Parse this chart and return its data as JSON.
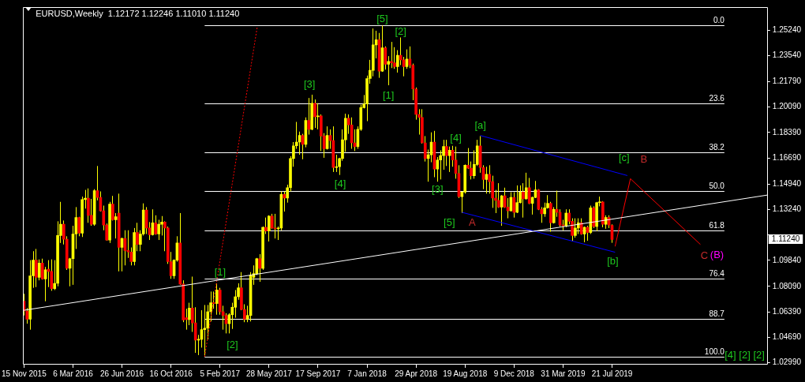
{
  "chart_data": {
    "type": "candlestick",
    "title": "EURUSD,Weekly  1.12172 1.12246 1.11010 1.11240",
    "color": "#ffff00",
    "x": [
      "2015-11-15",
      "2015-11-22",
      "2015-11-29",
      "2015-12-06",
      "2015-12-13",
      "2015-12-20",
      "2015-12-27",
      "2016-01-03",
      "2016-01-10",
      "2016-01-17",
      "2016-01-24",
      "2016-01-31",
      "2016-02-07",
      "2016-02-14",
      "2016-02-21",
      "2016-02-28",
      "2016-03-06",
      "2016-03-13",
      "2016-03-20",
      "2016-03-27",
      "2016-04-03",
      "2016-04-10",
      "2016-04-17",
      "2016-04-24",
      "2016-05-01",
      "2016-05-08",
      "2016-05-15",
      "2016-05-22",
      "2016-05-29",
      "2016-06-05",
      "2016-06-12",
      "2016-06-19",
      "2016-06-26",
      "2016-07-03",
      "2016-07-10",
      "2016-07-17",
      "2016-07-24",
      "2016-07-31",
      "2016-08-07",
      "2016-08-14",
      "2016-08-21",
      "2016-08-28",
      "2016-09-04",
      "2016-09-11",
      "2016-09-18",
      "2016-09-25",
      "2016-10-02",
      "2016-10-09",
      "2016-10-16",
      "2016-10-23",
      "2016-10-30",
      "2016-11-06",
      "2016-11-13",
      "2016-11-20",
      "2016-11-27",
      "2016-12-04",
      "2016-12-11",
      "2016-12-18",
      "2016-12-25",
      "2017-01-01",
      "2017-01-08",
      "2017-01-15",
      "2017-01-22",
      "2017-01-29",
      "2017-02-05",
      "2017-02-12",
      "2017-02-19",
      "2017-02-26",
      "2017-03-05",
      "2017-03-12",
      "2017-03-19",
      "2017-03-26",
      "2017-04-02",
      "2017-04-09",
      "2017-04-16",
      "2017-04-23",
      "2017-04-30",
      "2017-05-07",
      "2017-05-14",
      "2017-05-21",
      "2017-05-28",
      "2017-06-04",
      "2017-06-11",
      "2017-06-18",
      "2017-06-25",
      "2017-07-02",
      "2017-07-09",
      "2017-07-16",
      "2017-07-23",
      "2017-07-30",
      "2017-08-06",
      "2017-08-13",
      "2017-08-20",
      "2017-08-27",
      "2017-09-03",
      "2017-09-10",
      "2017-09-17",
      "2017-09-24",
      "2017-10-01",
      "2017-10-08",
      "2017-10-15",
      "2017-10-22",
      "2017-10-29",
      "2017-11-05",
      "2017-11-12",
      "2017-11-19",
      "2017-11-26",
      "2017-12-03",
      "2017-12-10",
      "2017-12-17",
      "2017-12-24",
      "2017-12-31",
      "2018-01-07",
      "2018-01-14",
      "2018-01-21",
      "2018-01-28",
      "2018-02-04",
      "2018-02-11",
      "2018-02-18",
      "2018-02-25",
      "2018-03-04",
      "2018-03-11",
      "2018-03-18",
      "2018-03-25",
      "2018-04-01",
      "2018-04-08",
      "2018-04-15",
      "2018-04-22",
      "2018-04-29",
      "2018-05-06",
      "2018-05-13",
      "2018-05-20",
      "2018-05-27",
      "2018-06-03",
      "2018-06-10",
      "2018-06-17",
      "2018-06-24",
      "2018-07-01",
      "2018-07-08",
      "2018-07-15",
      "2018-07-22",
      "2018-07-29",
      "2018-08-05",
      "2018-08-12",
      "2018-08-19",
      "2018-08-26",
      "2018-09-02",
      "2018-09-09",
      "2018-09-16",
      "2018-09-23",
      "2018-09-30",
      "2018-10-07",
      "2018-10-14",
      "2018-10-21",
      "2018-10-28",
      "2018-11-04",
      "2018-11-11",
      "2018-11-18",
      "2018-11-25",
      "2018-12-02",
      "2018-12-09",
      "2018-12-16",
      "2018-12-23",
      "2018-12-30",
      "2019-01-06",
      "2019-01-13",
      "2019-01-20",
      "2019-01-27",
      "2019-02-03",
      "2019-02-10",
      "2019-02-17",
      "2019-02-24",
      "2019-03-03",
      "2019-03-10",
      "2019-03-17",
      "2019-03-24",
      "2019-03-31",
      "2019-04-07",
      "2019-04-14",
      "2019-04-21",
      "2019-04-28",
      "2019-05-05",
      "2019-05-12",
      "2019-05-19",
      "2019-05-26",
      "2019-06-02",
      "2019-06-09",
      "2019-06-16",
      "2019-06-23",
      "2019-06-30",
      "2019-07-07",
      "2019-07-14",
      "2019-07-21"
    ],
    "ohlc": [
      [
        1.071,
        1.076,
        1.0615,
        1.0645
      ],
      [
        1.0645,
        1.0665,
        1.056,
        1.059
      ],
      [
        1.059,
        1.0985,
        1.052,
        1.088
      ],
      [
        1.088,
        1.1045,
        1.08,
        1.0985
      ],
      [
        1.0985,
        1.106,
        1.0805,
        1.087
      ],
      [
        1.087,
        1.099,
        1.085,
        1.0965
      ],
      [
        1.0965,
        1.0995,
        1.0855,
        1.086
      ],
      [
        1.086,
        1.094,
        1.071,
        1.092
      ],
      [
        1.0925,
        1.0985,
        1.0805,
        1.091
      ],
      [
        1.091,
        1.099,
        1.078,
        1.0795
      ],
      [
        1.0795,
        1.0985,
        1.0785,
        1.083
      ],
      [
        1.083,
        1.1245,
        1.081,
        1.115
      ],
      [
        1.115,
        1.1375,
        1.11,
        1.1225
      ],
      [
        1.1225,
        1.125,
        1.109,
        1.1125
      ],
      [
        1.1125,
        1.1145,
        1.092,
        1.093
      ],
      [
        1.093,
        1.1,
        1.081,
        1.0995
      ],
      [
        1.0995,
        1.1215,
        1.082,
        1.116
      ],
      [
        1.116,
        1.134,
        1.106,
        1.127
      ],
      [
        1.127,
        1.1275,
        1.1145,
        1.1165
      ],
      [
        1.1165,
        1.141,
        1.114,
        1.139
      ],
      [
        1.139,
        1.1455,
        1.133,
        1.14
      ],
      [
        1.14,
        1.1465,
        1.1235,
        1.1285
      ],
      [
        1.1285,
        1.1395,
        1.1215,
        1.1225
      ],
      [
        1.1225,
        1.146,
        1.1215,
        1.145
      ],
      [
        1.145,
        1.1615,
        1.1385,
        1.1405
      ],
      [
        1.1405,
        1.1445,
        1.131,
        1.1315
      ],
      [
        1.1315,
        1.135,
        1.1185,
        1.122
      ],
      [
        1.122,
        1.123,
        1.1115,
        1.112
      ],
      [
        1.112,
        1.1375,
        1.11,
        1.136
      ],
      [
        1.136,
        1.1415,
        1.125,
        1.1255
      ],
      [
        1.1255,
        1.13,
        1.113,
        1.1275
      ],
      [
        1.13,
        1.143,
        1.091,
        1.107
      ],
      [
        1.107,
        1.1135,
        1.091,
        1.113
      ],
      [
        1.113,
        1.1185,
        1.095,
        1.105
      ],
      [
        1.105,
        1.1185,
        1.1,
        1.104
      ],
      [
        1.104,
        1.107,
        1.095,
        1.0975
      ],
      [
        1.0975,
        1.12,
        1.095,
        1.117
      ],
      [
        1.117,
        1.1235,
        1.1045,
        1.109
      ],
      [
        1.109,
        1.1185,
        1.1045,
        1.116
      ],
      [
        1.116,
        1.1365,
        1.115,
        1.132
      ],
      [
        1.132,
        1.134,
        1.116,
        1.12
      ],
      [
        1.12,
        1.124,
        1.112,
        1.1155
      ],
      [
        1.1155,
        1.1325,
        1.115,
        1.1235
      ],
      [
        1.1235,
        1.1285,
        1.1155,
        1.116
      ],
      [
        1.116,
        1.1255,
        1.112,
        1.1225
      ],
      [
        1.1225,
        1.128,
        1.115,
        1.124
      ],
      [
        1.124,
        1.1245,
        1.1045,
        1.12
      ],
      [
        1.12,
        1.121,
        1.096,
        1.0975
      ],
      [
        1.0975,
        1.104,
        1.086,
        1.088
      ],
      [
        1.088,
        1.099,
        1.086,
        1.0985
      ],
      [
        1.0985,
        1.1145,
        1.0975,
        1.11
      ],
      [
        1.11,
        1.13,
        1.082,
        1.0825
      ],
      [
        1.0825,
        1.085,
        1.057,
        1.0585
      ],
      [
        1.06,
        1.066,
        1.052,
        1.0588
      ],
      [
        1.0588,
        1.07,
        1.055,
        1.0665
      ],
      [
        1.0665,
        1.0875,
        1.0505,
        1.0565
      ],
      [
        1.0565,
        1.067,
        1.0365,
        1.045
      ],
      [
        1.045,
        1.0485,
        1.035,
        1.0455
      ],
      [
        1.0455,
        1.065,
        1.04,
        1.052
      ],
      [
        1.052,
        1.0685,
        1.034,
        1.053
      ],
      [
        1.053,
        1.0685,
        1.0455,
        1.064
      ],
      [
        1.064,
        1.0775,
        1.0575,
        1.07
      ],
      [
        1.07,
        1.0775,
        1.066,
        1.0695
      ],
      [
        1.0695,
        1.083,
        1.062,
        1.0785
      ],
      [
        1.0785,
        1.08,
        1.062,
        1.064
      ],
      [
        1.064,
        1.068,
        1.052,
        1.0615
      ],
      [
        1.0615,
        1.063,
        1.0495,
        1.056
      ],
      [
        1.056,
        1.063,
        1.0495,
        1.062
      ],
      [
        1.062,
        1.07,
        1.0525,
        1.067
      ],
      [
        1.067,
        1.0785,
        1.06,
        1.074
      ],
      [
        1.074,
        1.083,
        1.072,
        1.08
      ],
      [
        1.08,
        1.0905,
        1.065,
        1.0655
      ],
      [
        1.0655,
        1.069,
        1.057,
        1.059
      ],
      [
        1.059,
        1.068,
        1.057,
        1.0615
      ],
      [
        1.0615,
        1.0905,
        1.0575,
        1.0885
      ],
      [
        1.087,
        1.095,
        1.082,
        1.0895
      ],
      [
        1.0895,
        1.1,
        1.0885,
        1.0995
      ],
      [
        1.0995,
        1.1025,
        1.084,
        1.093
      ],
      [
        1.093,
        1.121,
        1.092,
        1.1205
      ],
      [
        1.1205,
        1.127,
        1.116,
        1.118
      ],
      [
        1.118,
        1.1285,
        1.111,
        1.128
      ],
      [
        1.128,
        1.1295,
        1.1195,
        1.12
      ],
      [
        1.12,
        1.1295,
        1.113,
        1.1195
      ],
      [
        1.1195,
        1.121,
        1.112,
        1.12
      ],
      [
        1.12,
        1.1445,
        1.1185,
        1.1425
      ],
      [
        1.1425,
        1.1445,
        1.131,
        1.14
      ],
      [
        1.14,
        1.149,
        1.137,
        1.147
      ],
      [
        1.147,
        1.168,
        1.1445,
        1.1665
      ],
      [
        1.1665,
        1.1775,
        1.161,
        1.175
      ],
      [
        1.175,
        1.191,
        1.173,
        1.1775
      ],
      [
        1.1775,
        1.1845,
        1.169,
        1.182
      ],
      [
        1.182,
        1.183,
        1.166,
        1.176
      ],
      [
        1.176,
        1.194,
        1.174,
        1.192
      ],
      [
        1.192,
        1.207,
        1.1825,
        1.186
      ],
      [
        1.186,
        1.2092,
        1.1855,
        1.2035
      ],
      [
        1.2035,
        1.206,
        1.187,
        1.1945
      ],
      [
        1.1945,
        1.2035,
        1.186,
        1.195
      ],
      [
        1.195,
        1.196,
        1.1715,
        1.1815
      ],
      [
        1.1815,
        1.1835,
        1.167,
        1.173
      ],
      [
        1.173,
        1.188,
        1.1725,
        1.182
      ],
      [
        1.182,
        1.186,
        1.173,
        1.1785
      ],
      [
        1.1785,
        1.188,
        1.1575,
        1.1605
      ],
      [
        1.1605,
        1.169,
        1.1575,
        1.161
      ],
      [
        1.161,
        1.167,
        1.1555,
        1.1665
      ],
      [
        1.1665,
        1.186,
        1.165,
        1.179
      ],
      [
        1.179,
        1.1965,
        1.171,
        1.1935
      ],
      [
        1.1935,
        1.196,
        1.183,
        1.189
      ],
      [
        1.189,
        1.194,
        1.173,
        1.177
      ],
      [
        1.177,
        1.186,
        1.1715,
        1.1745
      ],
      [
        1.1745,
        1.188,
        1.173,
        1.186
      ],
      [
        1.186,
        1.2025,
        1.185,
        1.2005
      ],
      [
        1.2005,
        1.209,
        1.2,
        1.203
      ],
      [
        1.203,
        1.222,
        1.1915,
        1.22
      ],
      [
        1.22,
        1.2325,
        1.2165,
        1.2255
      ],
      [
        1.2255,
        1.2535,
        1.2215,
        1.2425
      ],
      [
        1.2425,
        1.252,
        1.2335,
        1.246
      ],
      [
        1.246,
        1.2505,
        1.2205,
        1.225
      ],
      [
        1.225,
        1.2555,
        1.2245,
        1.2405
      ],
      [
        1.2405,
        1.2415,
        1.226,
        1.2295
      ],
      [
        1.2295,
        1.235,
        1.2155,
        1.2315
      ],
      [
        1.2315,
        1.2445,
        1.227,
        1.2305
      ],
      [
        1.2305,
        1.241,
        1.2265,
        1.228
      ],
      [
        1.228,
        1.239,
        1.224,
        1.2355
      ],
      [
        1.2355,
        1.2475,
        1.229,
        1.2325
      ],
      [
        1.2325,
        1.2345,
        1.2215,
        1.228
      ],
      [
        1.228,
        1.2395,
        1.2265,
        1.233
      ],
      [
        1.233,
        1.2415,
        1.227,
        1.229
      ],
      [
        1.229,
        1.23,
        1.2055,
        1.213
      ],
      [
        1.213,
        1.214,
        1.1925,
        1.196
      ],
      [
        1.196,
        1.1995,
        1.1825,
        1.194
      ],
      [
        1.194,
        1.1995,
        1.1765,
        1.177
      ],
      [
        1.177,
        1.1815,
        1.1645,
        1.1665
      ],
      [
        1.1665,
        1.1725,
        1.151,
        1.169
      ],
      [
        1.169,
        1.184,
        1.164,
        1.1775
      ],
      [
        1.1775,
        1.185,
        1.154,
        1.1595
      ],
      [
        1.1595,
        1.1675,
        1.151,
        1.1655
      ],
      [
        1.1655,
        1.172,
        1.1525,
        1.1685
      ],
      [
        1.1685,
        1.179,
        1.159,
        1.1745
      ],
      [
        1.1745,
        1.179,
        1.1615,
        1.1685
      ],
      [
        1.1685,
        1.1745,
        1.1575,
        1.172
      ],
      [
        1.172,
        1.175,
        1.161,
        1.1655
      ],
      [
        1.1655,
        1.1745,
        1.153,
        1.1565
      ],
      [
        1.1565,
        1.162,
        1.14,
        1.141
      ],
      [
        1.141,
        1.1445,
        1.13,
        1.144
      ],
      [
        1.144,
        1.1625,
        1.143,
        1.162
      ],
      [
        1.162,
        1.1735,
        1.1595,
        1.16
      ],
      [
        1.16,
        1.1645,
        1.1525,
        1.155
      ],
      [
        1.155,
        1.172,
        1.153,
        1.1625
      ],
      [
        1.1625,
        1.179,
        1.1615,
        1.175
      ],
      [
        1.175,
        1.1815,
        1.157,
        1.1605
      ],
      [
        1.1605,
        1.162,
        1.146,
        1.1525
      ],
      [
        1.1525,
        1.161,
        1.143,
        1.156
      ],
      [
        1.156,
        1.162,
        1.143,
        1.151
      ],
      [
        1.151,
        1.155,
        1.1335,
        1.14
      ],
      [
        1.14,
        1.1455,
        1.13,
        1.1385
      ],
      [
        1.1385,
        1.15,
        1.1335,
        1.134
      ],
      [
        1.134,
        1.142,
        1.1215,
        1.1415
      ],
      [
        1.1415,
        1.147,
        1.1335,
        1.134
      ],
      [
        1.134,
        1.14,
        1.1265,
        1.1315
      ],
      [
        1.1315,
        1.144,
        1.131,
        1.1405
      ],
      [
        1.1405,
        1.144,
        1.127,
        1.1305
      ],
      [
        1.1305,
        1.1485,
        1.13,
        1.137
      ],
      [
        1.137,
        1.1485,
        1.1365,
        1.144
      ],
      [
        1.144,
        1.15,
        1.127,
        1.1395
      ],
      [
        1.1395,
        1.157,
        1.139,
        1.147
      ],
      [
        1.147,
        1.1535,
        1.136,
        1.1365
      ],
      [
        1.1365,
        1.141,
        1.129,
        1.1405
      ],
      [
        1.1405,
        1.1515,
        1.14,
        1.1455
      ],
      [
        1.1455,
        1.146,
        1.132,
        1.1325
      ],
      [
        1.1325,
        1.134,
        1.1235,
        1.1295
      ],
      [
        1.1295,
        1.137,
        1.1275,
        1.1335
      ],
      [
        1.1335,
        1.142,
        1.133,
        1.1365
      ],
      [
        1.1365,
        1.1375,
        1.1175,
        1.1235
      ],
      [
        1.1235,
        1.134,
        1.123,
        1.1325
      ],
      [
        1.1325,
        1.145,
        1.1275,
        1.1305
      ],
      [
        1.1305,
        1.1325,
        1.121,
        1.122
      ],
      [
        1.122,
        1.1255,
        1.1185,
        1.1215
      ],
      [
        1.1215,
        1.1325,
        1.1205,
        1.13
      ],
      [
        1.13,
        1.1325,
        1.1225,
        1.1245
      ],
      [
        1.1245,
        1.1265,
        1.111,
        1.115
      ],
      [
        1.115,
        1.1265,
        1.1135,
        1.12
      ],
      [
        1.12,
        1.1265,
        1.116,
        1.1235
      ],
      [
        1.1235,
        1.1265,
        1.1155,
        1.116
      ],
      [
        1.116,
        1.121,
        1.1105,
        1.1205
      ],
      [
        1.1205,
        1.1215,
        1.1115,
        1.117
      ],
      [
        1.117,
        1.135,
        1.116,
        1.1335
      ],
      [
        1.1335,
        1.1345,
        1.12,
        1.121
      ],
      [
        1.121,
        1.1375,
        1.118,
        1.137
      ],
      [
        1.137,
        1.141,
        1.1345,
        1.1375
      ],
      [
        1.1375,
        1.138,
        1.1205,
        1.1225
      ],
      [
        1.1225,
        1.1285,
        1.1195,
        1.127
      ],
      [
        1.127,
        1.1285,
        1.12,
        1.122
      ],
      [
        1.12172,
        1.12246,
        1.1101,
        1.1124
      ]
    ],
    "colors": [
      "#ff0000",
      "#ff0000",
      "#ffff00",
      "#ffff00",
      "#ff0000",
      "#ffff00",
      "#ff0000",
      "#ffff00",
      "#ff0000",
      "#ff0000",
      "#ffff00",
      "#ffff00",
      "#ffff00",
      "#ff0000",
      "#ff0000",
      "#ffff00",
      "#ffff00",
      "#ffff00",
      "#ff0000",
      "#ffff00",
      "#ffff00",
      "#ff0000",
      "#ff0000",
      "#ffff00",
      "#ff0000",
      "#ff0000",
      "#ff0000",
      "#ff0000",
      "#ffff00",
      "#ff0000",
      "#ffff00",
      "#ff0000",
      "#ffff00",
      "#ff0000",
      "#ff0000",
      "#ff0000",
      "#ffff00",
      "#ff0000",
      "#ffff00",
      "#ffff00",
      "#ff0000",
      "#ff0000",
      "#ffff00",
      "#ff0000",
      "#ffff00",
      "#ffff00",
      "#ff0000",
      "#ff0000",
      "#ff0000",
      "#ffff00",
      "#ffff00",
      "#ff0000",
      "#ff0000",
      "#ff0000",
      "#ffff00",
      "#ff0000",
      "#ff0000",
      "#ffff00",
      "#ffff00",
      "#ffff00",
      "#ffff00",
      "#ffff00",
      "#ff0000",
      "#ffff00",
      "#ff0000",
      "#ff0000",
      "#ff0000",
      "#ffff00",
      "#ffff00",
      "#ffff00",
      "#ffff00",
      "#ff0000",
      "#ff0000",
      "#ffff00",
      "#ffff00",
      "#ffff00",
      "#ffff00",
      "#ff0000",
      "#ffff00",
      "#ff0000",
      "#ffff00",
      "#ff0000",
      "#ff0000",
      "#ffff00",
      "#ffff00",
      "#ff0000",
      "#ffff00",
      "#ffff00",
      "#ffff00",
      "#ffff00",
      "#ffff00",
      "#ff0000",
      "#ffff00",
      "#ff0000",
      "#ffff00",
      "#ff0000",
      "#ffff00",
      "#ff0000",
      "#ff0000",
      "#ffff00",
      "#ff0000",
      "#ff0000",
      "#ffff00",
      "#ffff00",
      "#ffff00",
      "#ffff00",
      "#ff0000",
      "#ff0000",
      "#ff0000",
      "#ffff00",
      "#ffff00",
      "#ffff00",
      "#ffff00",
      "#ffff00",
      "#ffff00",
      "#ffff00",
      "#ff0000",
      "#ffff00",
      "#ff0000",
      "#ffff00",
      "#ff0000",
      "#ff0000",
      "#ffff00",
      "#ff0000",
      "#ff0000",
      "#ffff00",
      "#ff0000",
      "#ff0000",
      "#ff0000",
      "#ff0000",
      "#ff0000",
      "#ff0000",
      "#ffff00",
      "#ffff00",
      "#ff0000",
      "#ffff00",
      "#ffff00",
      "#ffff00",
      "#ff0000",
      "#ffff00",
      "#ff0000",
      "#ff0000",
      "#ff0000",
      "#ffff00",
      "#ffff00",
      "#ff0000",
      "#ff0000",
      "#ffff00",
      "#ffff00",
      "#ff0000",
      "#ff0000",
      "#ffff00",
      "#ff0000",
      "#ff0000",
      "#ff0000",
      "#ff0000",
      "#ffff00",
      "#ff0000",
      "#ff0000",
      "#ffff00",
      "#ff0000",
      "#ffff00",
      "#ffff00",
      "#ff0000",
      "#ffff00",
      "#ff0000",
      "#ffff00",
      "#ffff00",
      "#ff0000",
      "#ff0000",
      "#ffff00",
      "#ffff00",
      "#ff0000",
      "#ffff00",
      "#ff0000",
      "#ff0000",
      "#ff0000",
      "#ffff00",
      "#ff0000",
      "#ff0000",
      "#ffff00",
      "#ffff00",
      "#ff0000",
      "#ffff00",
      "#ff0000",
      "#ffff00",
      "#ff0000",
      "#ffff00",
      "#ffff00",
      "#ff0000",
      "#ffff00",
      "#ff0000",
      "#ff0000"
    ],
    "series": [
      {
        "type": "line",
        "color": "#ffffff",
        "x": [
          "2015-11-13",
          "2020-07-11"
        ],
        "values": [
          1.0649,
          1.1421
        ]
      },
      {
        "type": "line",
        "color": "#ff0000",
        "line_style": "dotted",
        "x": [
          "2017-01-01",
          "2017-05-01"
        ],
        "values": [
          1.034,
          1.2543
        ]
      },
      {
        "type": "line",
        "color": "#0000ff",
        "x": [
          "2018-09-23",
          "2019-08-25"
        ],
        "values": [
          1.1819,
          1.1551
        ]
      },
      {
        "type": "line",
        "color": "#0000ff",
        "x": [
          "2018-08-12",
          "2019-07-28"
        ],
        "values": [
          1.1305,
          1.1038
        ]
      },
      {
        "type": "line",
        "color": "#ff0000",
        "x": [
          "2019-07-28",
          "2019-09-01",
          "2020-02-08"
        ],
        "values": [
          1.1077,
          1.153,
          1.109
        ]
      }
    ],
    "ref_lines": [
      {
        "axis": "y2",
        "value": 0,
        "label": "0.0",
        "color": "#ffffff"
      },
      {
        "axis": "y2",
        "value": 23.6,
        "label": "23.6",
        "color": "#ffffff"
      },
      {
        "axis": "y2",
        "value": 38.2,
        "label": "38.2",
        "color": "#ffffff"
      },
      {
        "axis": "y2",
        "value": 50,
        "label": "50.0",
        "color": "#ffffff"
      },
      {
        "axis": "y2",
        "value": 61.8,
        "label": "61.8",
        "color": "#ffffff"
      },
      {
        "axis": "y2",
        "value": 76.4,
        "label": "76.4",
        "color": "#ffffff"
      },
      {
        "axis": "y2",
        "value": 88.7,
        "label": "88.7",
        "color": "#ffffff"
      },
      {
        "axis": "y2",
        "value": 100,
        "label": "100.0",
        "color": "#ffffff"
      }
    ],
    "annotations": [
      {
        "text": "[5]",
        "x": "2018-02-11",
        "y": 1.2555
      },
      {
        "text": "[2]",
        "x": "2018-03-25",
        "y": 1.2475
      },
      {
        "text": "[1]",
        "x": "2018-02-25",
        "y": 1.2155
      },
      {
        "text": "[3]",
        "x": "2017-09-03",
        "y": 1.2092
      },
      {
        "text": "[4]",
        "x": "2017-11-05",
        "y": 1.1555
      },
      {
        "text": "[4]",
        "x": "2018-07-29",
        "y": 1.1745
      },
      {
        "text": "[a]",
        "x": "2018-09-23",
        "y": 1.1815
      },
      {
        "text": "[3]",
        "x": "2018-06-17",
        "y": 1.151
      },
      {
        "text": "[5]",
        "x": "2018-08-12",
        "y": 1.13
      },
      {
        "text": "[c]",
        "x": "2019-09-01",
        "y": 1.153
      },
      {
        "text": "[b]",
        "x": "2019-07-28",
        "y": 1.1077
      },
      {
        "text": "[1]",
        "x": "2017-01-29",
        "y": 1.083
      },
      {
        "text": "[2]",
        "x": "2017-02-26",
        "y": 1.0495
      },
      "[4] [2] [2]",
      {
        "text": "A",
        "x": "2018-08-12",
        "y": 1.13
      },
      {
        "text": "B",
        "x": "2019-09-01",
        "y": 1.153
      },
      {
        "text": "C",
        "x": "2020-02-08",
        "y": 1.109
      },
      {
        "text": "(B)",
        "x": "2020-02-08",
        "y": 1.109
      },
      "1.11240"
    ],
    "xlim": [
      "2015-11-13",
      "2020-07-11"
    ],
    "xticks": [
      {
        "value": "2015-11-15",
        "label": "15 Nov 2015"
      },
      {
        "value": "2016-03-06",
        "label": "6 Mar 2016"
      },
      {
        "value": "2016-06-26",
        "label": "26 Jun 2016"
      },
      {
        "value": "2016-10-16",
        "label": "16 Oct 2016"
      },
      {
        "value": "2017-02-05",
        "label": "5 Feb 2017"
      },
      {
        "value": "2017-05-28",
        "label": "28 May 2017"
      },
      {
        "value": "2017-09-17",
        "label": "17 Sep 2017"
      },
      {
        "value": "2018-01-07",
        "label": "7 Jan 2018"
      },
      {
        "value": "2018-04-29",
        "label": "29 Apr 2018"
      },
      {
        "value": "2018-08-19",
        "label": "19 Aug 2018"
      },
      {
        "value": "2018-12-09",
        "label": "9 Dec 2018"
      },
      {
        "value": "2019-03-31",
        "label": "31 Mar 2019"
      },
      {
        "value": "2019-07-21",
        "label": "21 Jul 2019"
      }
    ],
    "ylim": [
      1.0286,
      1.2678
    ],
    "yticks": [
      {
        "value": 1.2524,
        "label": "1.25240"
      },
      {
        "value": 1.2354,
        "label": "1.23540"
      },
      {
        "value": 1.2179,
        "label": "1.21790"
      },
      {
        "value": 1.2009,
        "label": "1.20090"
      },
      {
        "value": 1.1839,
        "label": "1.18390"
      },
      {
        "value": 1.1669,
        "label": "1.16690"
      },
      {
        "value": 1.1494,
        "label": "1.14940"
      },
      {
        "value": 1.1324,
        "label": "1.13240"
      },
      {
        "value": 1.1154,
        "label": null
      },
      {
        "value": 1.0984,
        "label": "1.09840"
      },
      {
        "value": 1.0809,
        "label": "1.08090"
      },
      {
        "value": 1.0639,
        "label": "1.06390"
      },
      {
        "value": 1.0469,
        "label": "1.04690"
      },
      {
        "value": 1.0299,
        "label": "1.02990"
      }
    ],
    "y2lim": [
      102.44,
      -5.55
    ]
  }
}
